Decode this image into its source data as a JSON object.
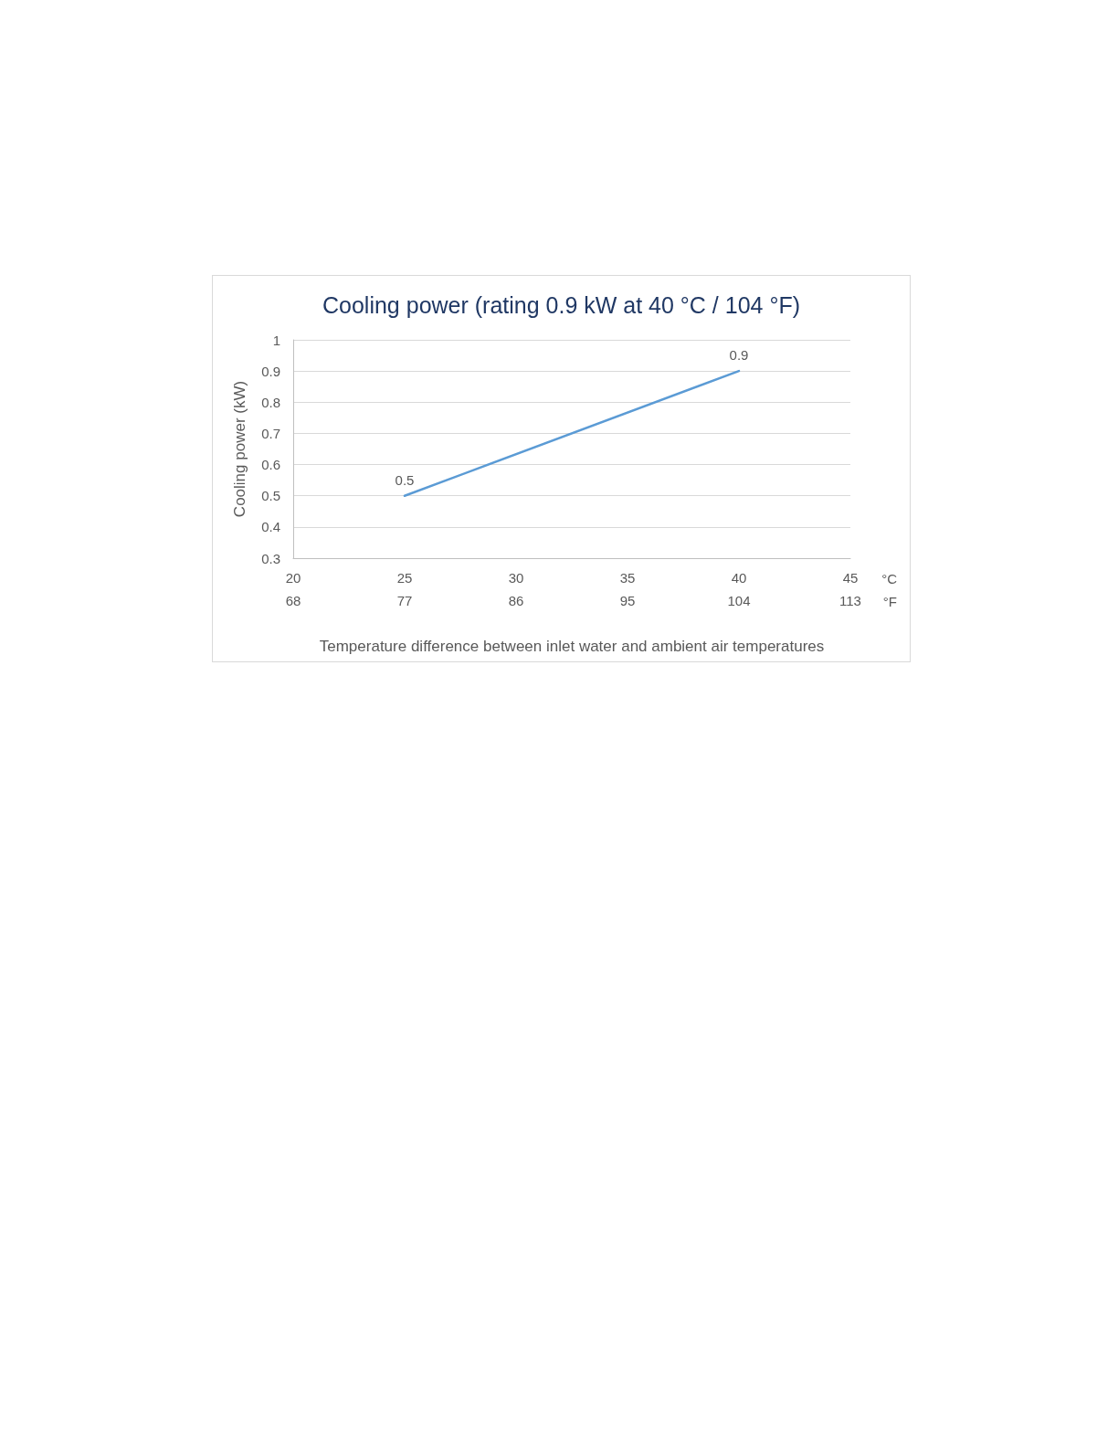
{
  "chart_data": {
    "type": "line",
    "title": "Cooling power (rating 0.9 kW at 40 °C / 104 °F)",
    "xlabel": "Temperature difference between inlet water and ambient air temperatures",
    "ylabel": "Cooling power (kW)",
    "x": [
      25,
      40
    ],
    "series": [
      {
        "color": "#5b9bd5",
        "values": [
          0.5,
          0.9
        ]
      }
    ],
    "xlim": [
      20,
      45
    ],
    "xticks": [
      20,
      25,
      30,
      35,
      40,
      45
    ],
    "x2lim": [
      68,
      113
    ],
    "x2ticks": [
      68,
      77,
      86,
      95,
      104,
      113
    ],
    "ylim": [
      0.3,
      1
    ],
    "yticks": [
      0.3,
      0.4,
      0.5,
      0.6,
      0.7,
      0.8,
      0.9,
      1
    ],
    "annotations": [
      "°C",
      "°F"
    ],
    "data_labels": true,
    "grid": "y",
    "marker": "none",
    "line_style": "solid"
  }
}
